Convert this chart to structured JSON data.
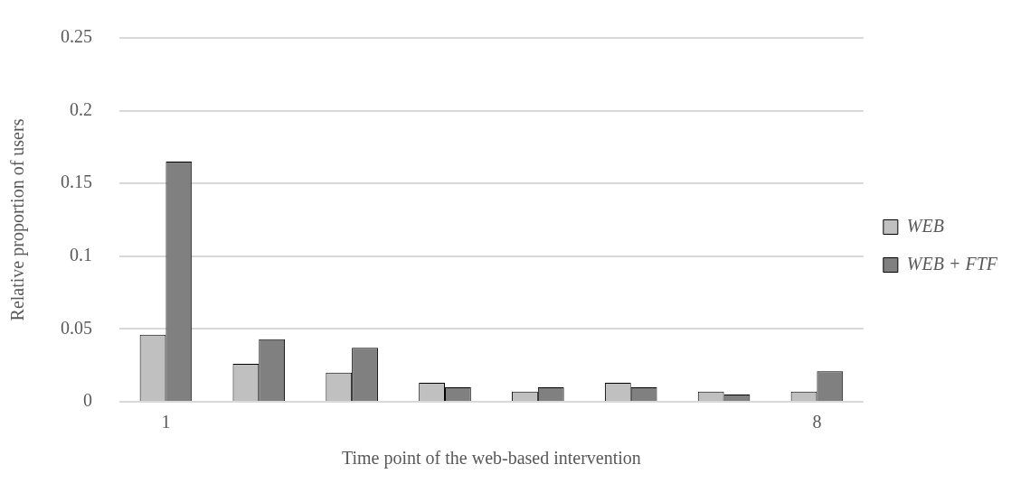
{
  "chart_data": {
    "type": "bar",
    "xlabel": "Time point of the web-based intervention",
    "ylabel": "Relative proportion of users",
    "categories": [
      "1",
      null,
      null,
      null,
      null,
      null,
      null,
      "8"
    ],
    "series": [
      {
        "name": "WEB",
        "color": "#c0c0c0",
        "values": [
          0.046,
          0.026,
          0.02,
          0.013,
          0.007,
          0.013,
          0.007,
          0.007
        ]
      },
      {
        "name": "WEB + FTF",
        "color": "#808080",
        "values": [
          0.165,
          0.043,
          0.037,
          0.01,
          0.01,
          0.01,
          0.005,
          0.021
        ]
      }
    ],
    "ylim": [
      0,
      0.25
    ],
    "yticks": [
      0,
      0.05,
      0.1,
      0.15,
      0.2,
      0.25
    ],
    "grid": "y",
    "legend": "right"
  }
}
